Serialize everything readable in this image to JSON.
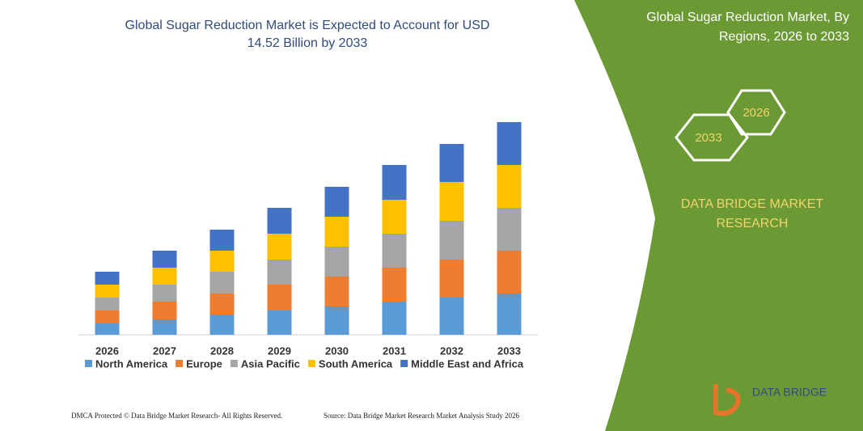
{
  "chart_data": {
    "type": "stacked-bar",
    "title": "Global Sugar Reduction Market is Expected to Account for USD 14.52 Billion by 2033",
    "categories": [
      "2026",
      "2027",
      "2028",
      "2029",
      "2030",
      "2031",
      "2032",
      "2033"
    ],
    "series": [
      {
        "name": "North America",
        "color": "#5b9bd5",
        "values": [
          14,
          19,
          25,
          30,
          35,
          41,
          46,
          51
        ]
      },
      {
        "name": "Europe",
        "color": "#ed7d31",
        "values": [
          16,
          22,
          26,
          32,
          37,
          42,
          47,
          53
        ]
      },
      {
        "name": "Asia Pacific",
        "color": "#a5a5a5",
        "values": [
          16,
          21,
          27,
          31,
          37,
          42,
          48,
          53
        ]
      },
      {
        "name": "South America",
        "color": "#ffc000",
        "values": [
          16,
          21,
          26,
          32,
          37,
          42,
          48,
          53
        ]
      },
      {
        "name": "Middle East and Africa",
        "color": "#4472c4",
        "values": [
          16,
          21,
          26,
          32,
          37,
          43,
          47,
          53
        ]
      }
    ],
    "ylim": [
      0,
      263
    ]
  },
  "panel": {
    "title": "Global Sugar Reduction Market, By Regions, 2026 to 2033",
    "hex_left": "2033",
    "hex_right": "2026",
    "brand": "DATA BRIDGE MARKET RESEARCH"
  },
  "footer": {
    "left": "DMCA Protected © Data Bridge Market Research- All Rights Reserved.",
    "right": "Source: Data Bridge Market Research Market Analysis Study 2026"
  },
  "logo": {
    "text": "DATA BRIDGE"
  }
}
